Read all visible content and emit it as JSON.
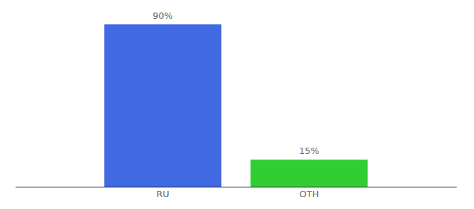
{
  "chart_data": {
    "type": "bar",
    "categories": [
      "RU",
      "OTH"
    ],
    "values": [
      90,
      15
    ],
    "value_labels": [
      "90%",
      "15%"
    ],
    "colors": [
      "#4169e1",
      "#32cd32"
    ],
    "ylim": [
      0,
      90
    ],
    "yticks": [],
    "data_labels": true,
    "tick_labels": "x",
    "grid": false
  }
}
